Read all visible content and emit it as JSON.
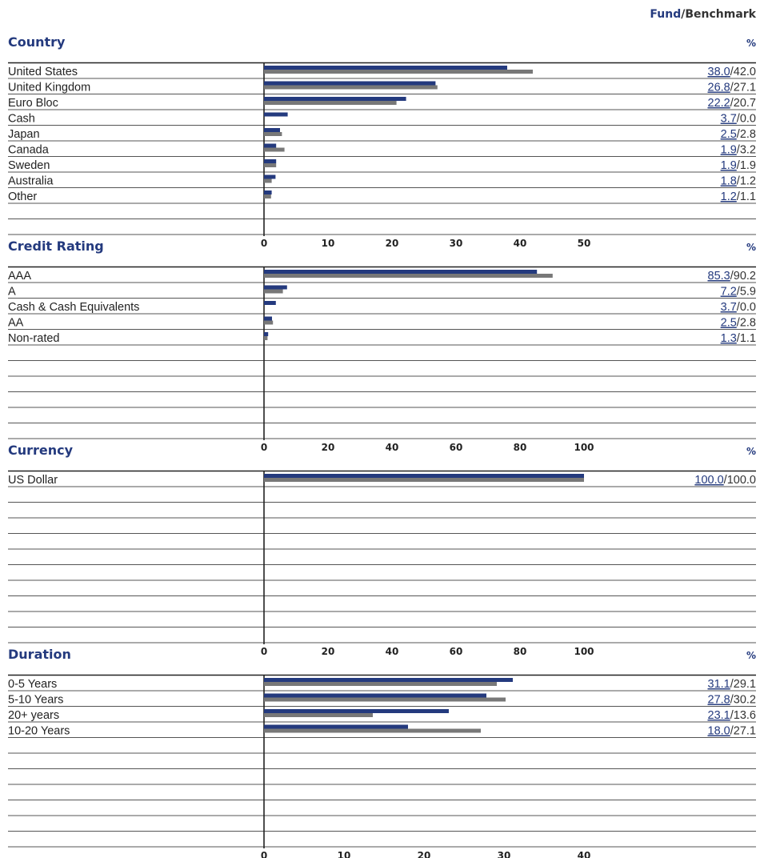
{
  "header": {
    "fund_label": "Fund",
    "separator": "/",
    "benchmark_label": "Benchmark"
  },
  "colors": {
    "fund": "#243a7e",
    "benchmark": "#787878"
  },
  "chart_data": [
    {
      "type": "bar",
      "title": "Country",
      "unit_label": "%",
      "categories": [
        "United States",
        "United Kingdom",
        "Euro Bloc",
        "Cash",
        "Japan",
        "Canada",
        "Sweden",
        "Australia",
        "Other"
      ],
      "series": [
        {
          "name": "Fund",
          "values": [
            38.0,
            26.8,
            22.2,
            3.7,
            2.5,
            1.9,
            1.9,
            1.8,
            1.2
          ]
        },
        {
          "name": "Benchmark",
          "values": [
            42.0,
            27.1,
            20.7,
            0.0,
            2.8,
            3.2,
            1.9,
            1.2,
            1.1
          ]
        }
      ],
      "value_labels": [
        [
          "38.0",
          "42.0"
        ],
        [
          "26.8",
          "27.1"
        ],
        [
          "22.2",
          "20.7"
        ],
        [
          "3.7",
          "0.0"
        ],
        [
          "2.5",
          "2.8"
        ],
        [
          "1.9",
          "3.2"
        ],
        [
          "1.9",
          "1.9"
        ],
        [
          "1.8",
          "1.2"
        ],
        [
          "1.2",
          "1.1"
        ]
      ],
      "xlim": [
        0,
        50
      ],
      "ticks": [
        "0",
        "10",
        "20",
        "30",
        "40",
        "50"
      ]
    },
    {
      "type": "bar",
      "title": "Credit Rating",
      "unit_label": "%",
      "categories": [
        "AAA",
        "A",
        "Cash & Cash Equivalents",
        "AA",
        "Non-rated"
      ],
      "series": [
        {
          "name": "Fund",
          "values": [
            85.3,
            7.2,
            3.7,
            2.5,
            1.3
          ]
        },
        {
          "name": "Benchmark",
          "values": [
            90.2,
            5.9,
            0.0,
            2.8,
            1.1
          ]
        }
      ],
      "value_labels": [
        [
          "85.3",
          "90.2"
        ],
        [
          "7.2",
          "5.9"
        ],
        [
          "3.7",
          "0.0"
        ],
        [
          "2.5",
          "2.8"
        ],
        [
          "1.3",
          "1.1"
        ]
      ],
      "xlim": [
        0,
        100
      ],
      "ticks": [
        "0",
        "20",
        "40",
        "60",
        "80",
        "100"
      ]
    },
    {
      "type": "bar",
      "title": "Currency",
      "unit_label": "%",
      "categories": [
        "US Dollar"
      ],
      "series": [
        {
          "name": "Fund",
          "values": [
            100.0
          ]
        },
        {
          "name": "Benchmark",
          "values": [
            100.0
          ]
        }
      ],
      "value_labels": [
        [
          "100.0",
          "100.0"
        ]
      ],
      "xlim": [
        0,
        100
      ],
      "ticks": [
        "0",
        "20",
        "40",
        "60",
        "80",
        "100"
      ]
    },
    {
      "type": "bar",
      "title": "Duration",
      "unit_label": "%",
      "categories": [
        "0-5 Years",
        "5-10 Years",
        "20+ years",
        "10-20 Years"
      ],
      "series": [
        {
          "name": "Fund",
          "values": [
            31.1,
            27.8,
            23.1,
            18.0
          ]
        },
        {
          "name": "Benchmark",
          "values": [
            29.1,
            30.2,
            13.6,
            27.1
          ]
        }
      ],
      "value_labels": [
        [
          "31.1",
          "29.1"
        ],
        [
          "27.8",
          "30.2"
        ],
        [
          "23.1",
          "13.6"
        ],
        [
          "18.0",
          "27.1"
        ]
      ],
      "xlim": [
        0,
        40
      ],
      "ticks": [
        "0",
        "10",
        "20",
        "30",
        "40"
      ]
    }
  ]
}
